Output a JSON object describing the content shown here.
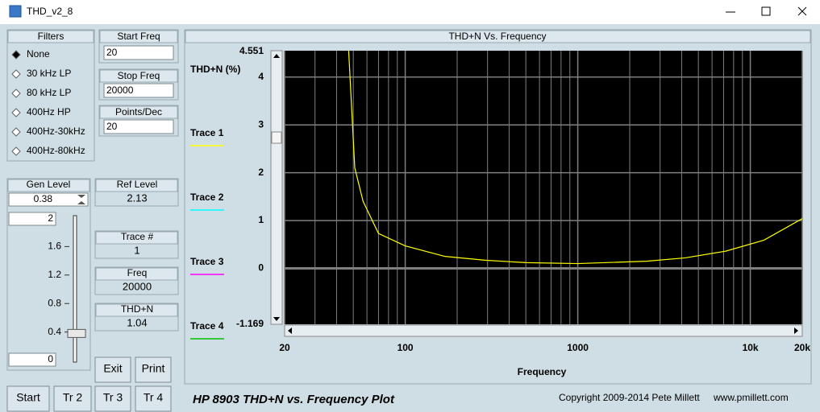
{
  "window": {
    "title": "THD_v2_8"
  },
  "filters": {
    "title": "Filters",
    "options": [
      "None",
      "30 kHz LP",
      "80 kHz LP",
      "400Hz HP",
      "400Hz-30kHz",
      "400Hz-80kHz"
    ],
    "selected": 0
  },
  "start_freq": {
    "label": "Start Freq",
    "value": 20
  },
  "stop_freq": {
    "label": "Stop Freq",
    "value": 20000
  },
  "points_dec": {
    "label": "Points/Dec",
    "value": 20
  },
  "gen_level": {
    "label": "Gen Level",
    "value": 0.38,
    "slider_max": 2,
    "slider_min": 0,
    "slider_ticks": [
      1.6,
      1.2,
      0.8,
      0.4
    ]
  },
  "ref_level": {
    "label": "Ref Level",
    "value": 2.13
  },
  "trace_num": {
    "label": "Trace #",
    "value": 1
  },
  "freq": {
    "label": "Freq",
    "value": 20000
  },
  "thdn": {
    "label": "THD+N",
    "value": 1.04
  },
  "buttons": [
    "Exit",
    "Print",
    "Start",
    "Tr 2",
    "Tr 3",
    "Tr 4"
  ],
  "footer": {
    "title": "HP 8903 THD+N vs. Frequency Plot",
    "copyright": "Copyright 2009-2014 Pete Millett",
    "url": "www.pmillett.com"
  },
  "chart_data": {
    "type": "line",
    "title": "THD+N Vs. Frequency",
    "y_label": "THD+N (%)",
    "x_label": "Frequency",
    "x_scale": "log",
    "xlim": [
      20,
      20000
    ],
    "xticks": [
      20,
      100,
      1000,
      {
        "value": 10000,
        "label": "10k"
      },
      {
        "value": 20000,
        "label": "20k"
      }
    ],
    "ylim": [
      -1.169,
      4.551
    ],
    "yticks": [
      0,
      1,
      2,
      3,
      4
    ],
    "grid": true,
    "minor_grid": true,
    "background": "#000000",
    "grid_color": "#7f7f7f",
    "series": [
      {
        "name": "Trace 1",
        "color": "#ffff00",
        "x": [
          47,
          51,
          57,
          70,
          100,
          170,
          290,
          500,
          1000,
          2500,
          4200,
          7200,
          12000,
          20000
        ],
        "values": [
          4.55,
          2.1,
          1.4,
          0.73,
          0.47,
          0.25,
          0.17,
          0.12,
          0.1,
          0.15,
          0.22,
          0.36,
          0.59,
          1.04
        ]
      },
      {
        "name": "Trace 2",
        "color": "#00ffff",
        "x": [],
        "values": []
      },
      {
        "name": "Trace 3",
        "color": "#ff00ff",
        "x": [],
        "values": []
      },
      {
        "name": "Trace 4",
        "color": "#00c000",
        "x": [],
        "values": []
      }
    ]
  }
}
